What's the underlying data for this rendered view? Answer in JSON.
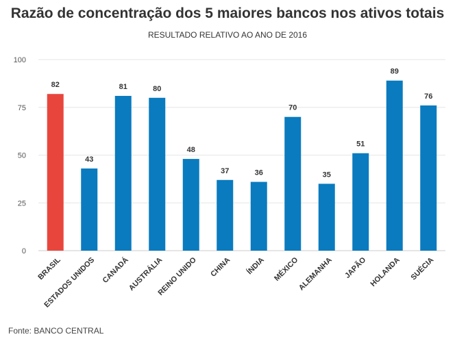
{
  "chart_data": {
    "type": "bar",
    "title": "Razão de concentração dos 5 maiores bancos nos ativos totais",
    "subtitle": "RESULTADO RELATIVO AO ANO DE 2016",
    "categories": [
      "BRASIL",
      "ESTADOS UNIDOS",
      "CANADÁ",
      "AUSTRÁLIA",
      "REINO UNIDO",
      "CHINA",
      "ÍNDIA",
      "MÉXICO",
      "ALEMANHA",
      "JAPÃO",
      "HOLANDA",
      "SUÉCIA"
    ],
    "values": [
      82,
      43,
      81,
      80,
      48,
      37,
      36,
      70,
      35,
      51,
      89,
      76
    ],
    "data_labels": [
      "82",
      "43",
      "81",
      "80",
      "48",
      "37",
      "36",
      "70",
      "35",
      "51",
      "89",
      "76"
    ],
    "highlight_index": 0,
    "colors": {
      "default": "#0a7bbf",
      "highlight": "#e8463d",
      "grid": "#e6e6e6",
      "axis": "#cccccc"
    },
    "ylim": [
      0,
      100
    ],
    "yticks": [
      0,
      25,
      50,
      75,
      100
    ],
    "ytick_labels": [
      "0",
      "25",
      "50",
      "75",
      "100"
    ],
    "grid": true,
    "xlabel": "",
    "ylabel": ""
  },
  "source": "Fonte: BANCO CENTRAL"
}
